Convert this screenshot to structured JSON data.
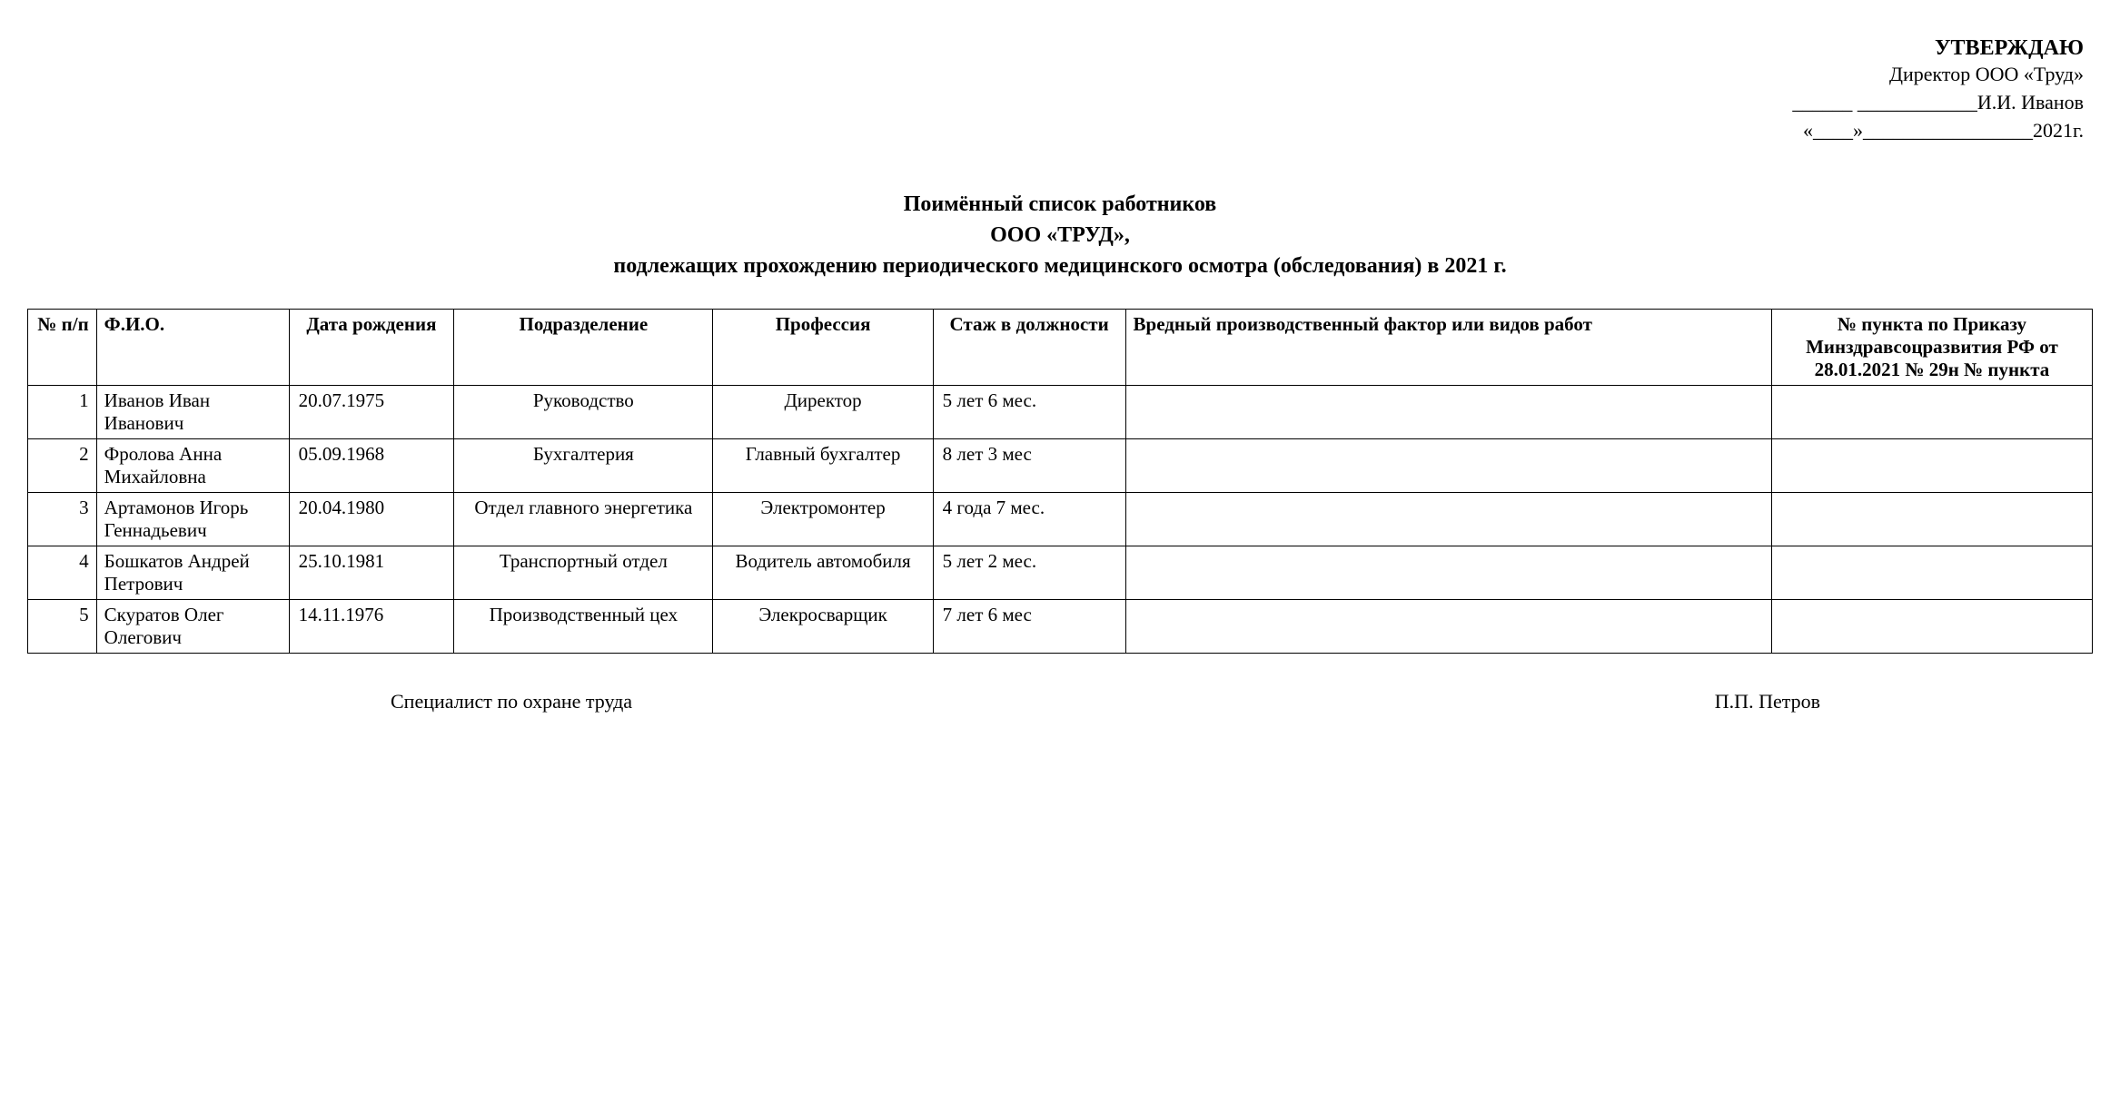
{
  "approval": {
    "title": "УТВЕРЖДАЮ",
    "position": "Директор ООО «Труд»",
    "signature_line": "______ ____________И.И. Иванов",
    "date_line": "«____»_________________2021г."
  },
  "title": {
    "line1": "Поимённый список работников",
    "line2": "ООО «ТРУД»,",
    "line3": "подлежащих прохождению периодического медицинского осмотра (обследования) в 2021 г."
  },
  "table": {
    "columns": [
      "№ п/п",
      "Ф.И.О.",
      "Дата рождения",
      "Подразделение",
      "Профессия",
      "Стаж в должности",
      "Вредный производственный фактор или видов работ",
      "№ пункта по Приказу Минздравсоцразвития РФ от 28.01.2021 № 29н № пункта"
    ],
    "rows": [
      {
        "num": "1",
        "fio": "Иванов Иван Иванович",
        "dob": "20.07.1975",
        "dept": "Руководство",
        "prof": "Директор",
        "exp": "5 лет 6 мес.",
        "factor": "",
        "order": ""
      },
      {
        "num": "2",
        "fio": "Фролова Анна Михайловна",
        "dob": "05.09.1968",
        "dept": "Бухгалтерия",
        "prof": "Главный бухгалтер",
        "exp": "8 лет 3 мес",
        "factor": "",
        "order": ""
      },
      {
        "num": "3",
        "fio": "Артамонов Игорь Геннадьевич",
        "dob": "20.04.1980",
        "dept": "Отдел главного энергетика",
        "prof": "Электромонтер",
        "exp": "4 года 7 мес.",
        "factor": "",
        "order": ""
      },
      {
        "num": "4",
        "fio": "Бошкатов Андрей Петрович",
        "dob": "25.10.1981",
        "dept": "Транспортный отдел",
        "prof": "Водитель автомобиля",
        "exp": "5 лет 2 мес.",
        "factor": "",
        "order": ""
      },
      {
        "num": "5",
        "fio": "Скуратов Олег Олегович",
        "dob": "14.11.1976",
        "dept": "Производственный цех",
        "prof": "Элекросварщик",
        "exp": "7 лет 6 мес",
        "factor": "",
        "order": ""
      }
    ]
  },
  "footer": {
    "role": "Специалист по охране труда",
    "name": "П.П. Петров"
  }
}
